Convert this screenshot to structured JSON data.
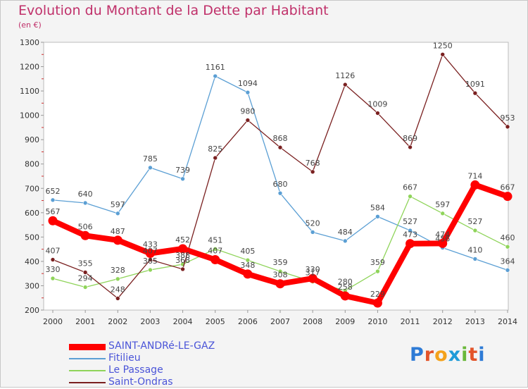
{
  "title": "Evolution du Montant de la Dette par Habitant",
  "unit": "(en €)",
  "logo": {
    "letters": [
      "P",
      "r",
      "o",
      "x",
      "i",
      "t",
      "i"
    ],
    "colors": [
      "#2e7bd6",
      "#e3542a",
      "#f4a21c",
      "#1e9bd8",
      "#6ab83a",
      "#e3542a",
      "#2e7bd6"
    ]
  },
  "chart_data": {
    "type": "line",
    "title": "Evolution du Montant de la Dette par Habitant",
    "ylabel": "(en €)",
    "ylim": [
      200,
      1300
    ],
    "yticks": [
      200,
      300,
      400,
      500,
      600,
      700,
      800,
      900,
      1000,
      1100,
      1200,
      1300
    ],
    "categories": [
      "2000",
      "2001",
      "2002",
      "2003",
      "2004",
      "2005",
      "2006",
      "2007",
      "2008",
      "2009",
      "2010",
      "2011",
      "2012",
      "2013",
      "2014"
    ],
    "grid": false,
    "legend": "bottom-left",
    "series": [
      {
        "name": "SAINT-ANDRé-LE-GAZ",
        "color": "#ff0000",
        "values": [
          567,
          506,
          487,
          433,
          452,
          407,
          348,
          308,
          330,
          258,
          229,
          473,
          474,
          714,
          667
        ]
      },
      {
        "name": "Fitilieu",
        "color": "#5b9fd4",
        "values": [
          652,
          640,
          597,
          785,
          739,
          1161,
          1094,
          680,
          520,
          484,
          584,
          527,
          456,
          410,
          364
        ]
      },
      {
        "name": "Le Passage",
        "color": "#8fd45a",
        "values": [
          330,
          294,
          328,
          365,
          388,
          451,
          405,
          359,
          317,
          280,
          359,
          667,
          597,
          527,
          460
        ]
      },
      {
        "name": "Saint-Ondras",
        "color": "#7a2020",
        "values": [
          407,
          355,
          248,
          407,
          368,
          825,
          980,
          868,
          768,
          1126,
          1009,
          869,
          1250,
          1091,
          953
        ]
      }
    ]
  }
}
